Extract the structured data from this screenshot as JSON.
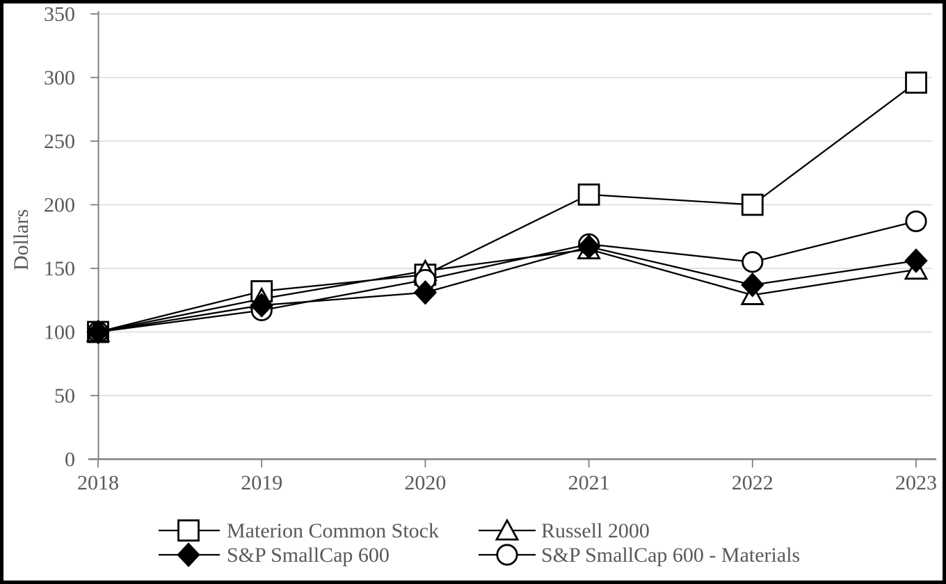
{
  "page": {
    "background": "#ffffff",
    "frame_border_color": "#000000"
  },
  "chart_data": {
    "type": "line",
    "title": "",
    "xlabel": "",
    "ylabel": "Dollars",
    "categories": [
      "2018",
      "2019",
      "2020",
      "2021",
      "2022",
      "2023"
    ],
    "ylim": [
      0,
      350
    ],
    "ytick_step": 50,
    "yticks": [
      0,
      50,
      100,
      150,
      200,
      250,
      300,
      350
    ],
    "grid": "horizontal",
    "legend_position": "bottom",
    "series": [
      {
        "name": "Materion Common Stock",
        "marker": "square",
        "marker_fill": "white",
        "values": [
          100,
          132,
          145,
          208,
          200,
          296
        ]
      },
      {
        "name": "Russell 2000",
        "marker": "triangle",
        "marker_fill": "white",
        "values": [
          100,
          126,
          148,
          165,
          129,
          149
        ]
      },
      {
        "name": "S&P SmallCap 600",
        "marker": "diamond",
        "marker_fill": "black",
        "values": [
          100,
          121,
          131,
          167,
          137,
          156
        ]
      },
      {
        "name": "S&P SmallCap 600 - Materials",
        "marker": "circle",
        "marker_fill": "white",
        "values": [
          100,
          117,
          141,
          169,
          155,
          187
        ]
      }
    ],
    "colors": {
      "series_line": "#000000",
      "marker_stroke": "#000000",
      "axis": "#808080",
      "gridline": "#d9d9d9",
      "label_text": "#595959"
    }
  }
}
